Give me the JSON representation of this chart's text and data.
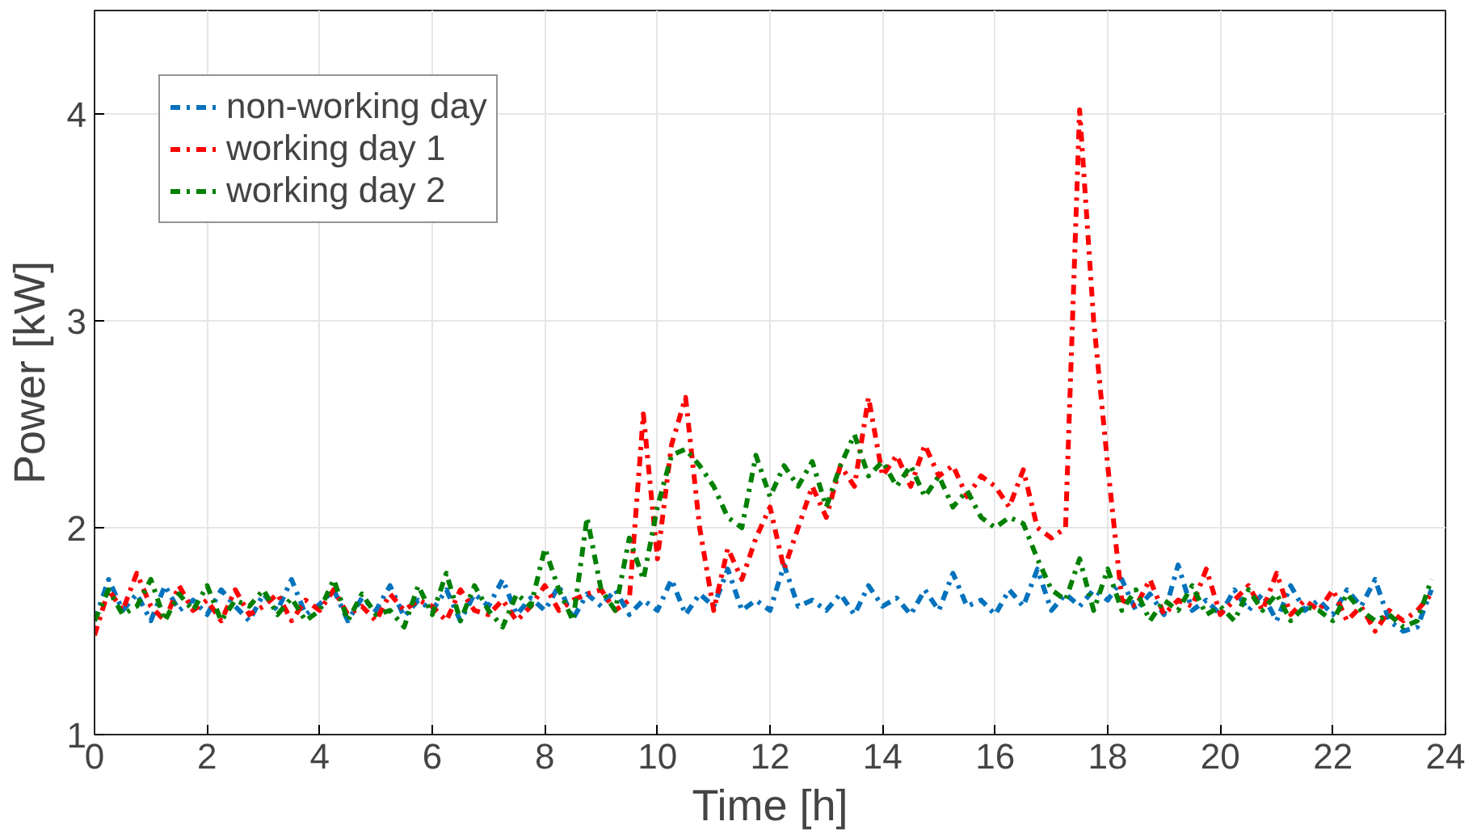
{
  "chart_data": {
    "type": "line",
    "xlabel": "Time [h]",
    "ylabel": "Power [kW]",
    "xlim": [
      0,
      24
    ],
    "ylim": [
      1,
      4.5
    ],
    "xticks": [
      0,
      2,
      4,
      6,
      8,
      10,
      12,
      14,
      16,
      18,
      20,
      22,
      24
    ],
    "yticks": [
      1,
      2,
      3,
      4
    ],
    "grid": true,
    "legend": "top left",
    "line_style": "dashed",
    "marker": "none",
    "x": [
      0,
      0.25,
      0.5,
      0.75,
      1,
      1.25,
      1.5,
      1.75,
      2,
      2.25,
      2.5,
      2.75,
      3,
      3.25,
      3.5,
      3.75,
      4,
      4.25,
      4.5,
      4.75,
      5,
      5.25,
      5.5,
      5.75,
      6,
      6.25,
      6.5,
      6.75,
      7,
      7.25,
      7.5,
      7.75,
      8,
      8.25,
      8.5,
      8.75,
      9,
      9.25,
      9.5,
      9.75,
      10,
      10.25,
      10.5,
      10.75,
      11,
      11.25,
      11.5,
      11.75,
      12,
      12.25,
      12.5,
      12.75,
      13,
      13.25,
      13.5,
      13.75,
      14,
      14.25,
      14.5,
      14.75,
      15,
      15.25,
      15.5,
      15.75,
      16,
      16.25,
      16.5,
      16.75,
      17,
      17.25,
      17.5,
      17.75,
      18,
      18.25,
      18.5,
      18.75,
      19,
      19.25,
      19.5,
      19.75,
      20,
      20.25,
      20.5,
      20.75,
      21,
      21.25,
      21.5,
      21.75,
      22,
      22.25,
      22.5,
      22.75,
      23,
      23.25,
      23.5,
      23.75
    ],
    "series": [
      {
        "name": "non-working day",
        "color": "#0072bd",
        "values": [
          1.55,
          1.75,
          1.6,
          1.68,
          1.55,
          1.72,
          1.6,
          1.65,
          1.58,
          1.7,
          1.62,
          1.55,
          1.68,
          1.6,
          1.75,
          1.58,
          1.63,
          1.7,
          1.55,
          1.66,
          1.6,
          1.72,
          1.57,
          1.65,
          1.6,
          1.7,
          1.55,
          1.68,
          1.62,
          1.75,
          1.58,
          1.66,
          1.6,
          1.72,
          1.56,
          1.68,
          1.62,
          1.7,
          1.58,
          1.65,
          1.6,
          1.75,
          1.58,
          1.68,
          1.62,
          1.8,
          1.6,
          1.65,
          1.6,
          1.82,
          1.62,
          1.65,
          1.6,
          1.68,
          1.58,
          1.72,
          1.62,
          1.66,
          1.58,
          1.7,
          1.6,
          1.78,
          1.62,
          1.65,
          1.58,
          1.7,
          1.62,
          1.8,
          1.6,
          1.68,
          1.62,
          1.7,
          1.65,
          1.75,
          1.6,
          1.68,
          1.58,
          1.82,
          1.6,
          1.65,
          1.58,
          1.7,
          1.6,
          1.68,
          1.55,
          1.72,
          1.6,
          1.65,
          1.58,
          1.7,
          1.62,
          1.75,
          1.55,
          1.5,
          1.52,
          1.7
        ]
      },
      {
        "name": "working day 1",
        "color": "#ff0000",
        "values": [
          1.48,
          1.7,
          1.6,
          1.78,
          1.62,
          1.55,
          1.72,
          1.6,
          1.65,
          1.55,
          1.7,
          1.58,
          1.62,
          1.68,
          1.55,
          1.65,
          1.6,
          1.7,
          1.58,
          1.62,
          1.55,
          1.68,
          1.6,
          1.65,
          1.62,
          1.55,
          1.7,
          1.6,
          1.58,
          1.65,
          1.55,
          1.62,
          1.72,
          1.6,
          1.65,
          1.68,
          1.7,
          1.6,
          1.65,
          2.55,
          1.85,
          2.4,
          2.63,
          2.0,
          1.6,
          1.9,
          1.75,
          1.95,
          2.1,
          1.8,
          2.0,
          2.2,
          2.05,
          2.3,
          2.2,
          2.63,
          2.25,
          2.35,
          2.2,
          2.4,
          2.25,
          2.3,
          2.15,
          2.25,
          2.2,
          2.1,
          2.28,
          2.0,
          1.95,
          2.0,
          4.02,
          3.0,
          2.3,
          1.65,
          1.62,
          1.75,
          1.58,
          1.65,
          1.62,
          1.8,
          1.58,
          1.65,
          1.72,
          1.6,
          1.78,
          1.58,
          1.65,
          1.6,
          1.7,
          1.55,
          1.62,
          1.5,
          1.6,
          1.55,
          1.6,
          1.68
        ]
      },
      {
        "name": "working day 2",
        "color": "#008000",
        "values": [
          1.55,
          1.7,
          1.58,
          1.62,
          1.75,
          1.55,
          1.68,
          1.6,
          1.72,
          1.55,
          1.65,
          1.62,
          1.7,
          1.58,
          1.66,
          1.55,
          1.6,
          1.75,
          1.55,
          1.68,
          1.58,
          1.6,
          1.52,
          1.72,
          1.58,
          1.78,
          1.55,
          1.72,
          1.6,
          1.52,
          1.68,
          1.62,
          1.9,
          1.7,
          1.55,
          2.05,
          1.7,
          1.6,
          1.95,
          1.75,
          2.1,
          2.35,
          2.38,
          2.3,
          2.2,
          2.05,
          2.0,
          2.35,
          2.15,
          2.3,
          2.2,
          2.32,
          2.1,
          2.3,
          2.45,
          2.25,
          2.32,
          2.2,
          2.3,
          2.15,
          2.25,
          2.1,
          2.18,
          2.05,
          2.0,
          2.05,
          2.02,
          1.85,
          1.7,
          1.65,
          1.85,
          1.6,
          1.8,
          1.6,
          1.7,
          1.55,
          1.65,
          1.6,
          1.72,
          1.58,
          1.62,
          1.55,
          1.7,
          1.6,
          1.68,
          1.55,
          1.62,
          1.6,
          1.55,
          1.68,
          1.6,
          1.55,
          1.58,
          1.52,
          1.55,
          1.75
        ]
      }
    ]
  }
}
